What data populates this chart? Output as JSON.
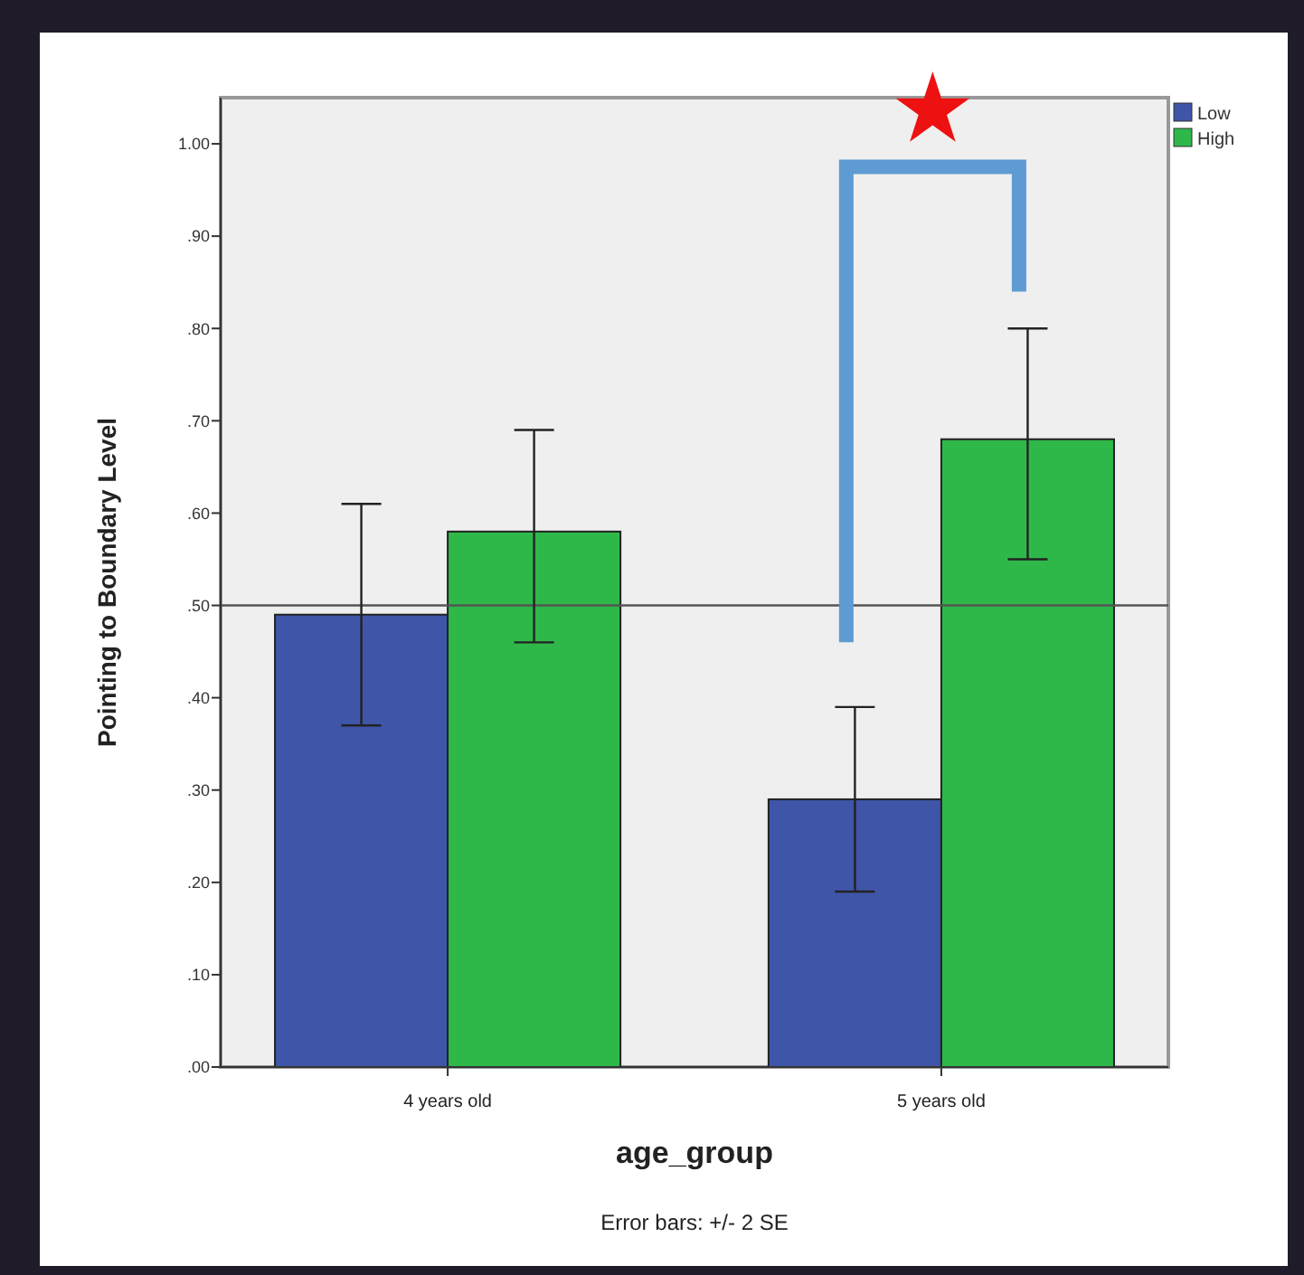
{
  "chart_data": {
    "type": "bar",
    "xlabel": "age_group",
    "ylabel": "Pointing to Boundary Level",
    "categories": [
      "4 years old",
      "5 years old"
    ],
    "series": [
      {
        "name": "Low",
        "color": "#3f55a8",
        "values": [
          0.49,
          0.29
        ],
        "errors": [
          [
            0.37,
            0.61
          ],
          [
            0.19,
            0.39
          ]
        ]
      },
      {
        "name": "High",
        "color": "#2eb84a",
        "values": [
          0.58,
          0.68
        ],
        "errors": [
          [
            0.46,
            0.69
          ],
          [
            0.55,
            0.8
          ]
        ]
      }
    ],
    "ylim": [
      0,
      1.05
    ],
    "yticks": [
      {
        "value": 0,
        "label": ".00"
      },
      {
        "value": 0.1,
        "label": ".10"
      },
      {
        "value": 0.2,
        "label": ".20"
      },
      {
        "value": 0.3,
        "label": ".30"
      },
      {
        "value": 0.4,
        "label": ".40"
      },
      {
        "value": 0.5,
        "label": ".50"
      },
      {
        "value": 0.6,
        "label": ".60"
      },
      {
        "value": 0.7,
        "label": ".70"
      },
      {
        "value": 0.8,
        "label": ".80"
      },
      {
        "value": 0.9,
        "label": ".90"
      },
      {
        "value": 1,
        "label": "1.00"
      }
    ],
    "ref_lines": [
      {
        "axis": "y",
        "value": 0.5,
        "color": "#555555"
      }
    ],
    "annotations": [
      "Error bars: +/- 2 SE"
    ],
    "legend": "top right",
    "grid": false
  }
}
